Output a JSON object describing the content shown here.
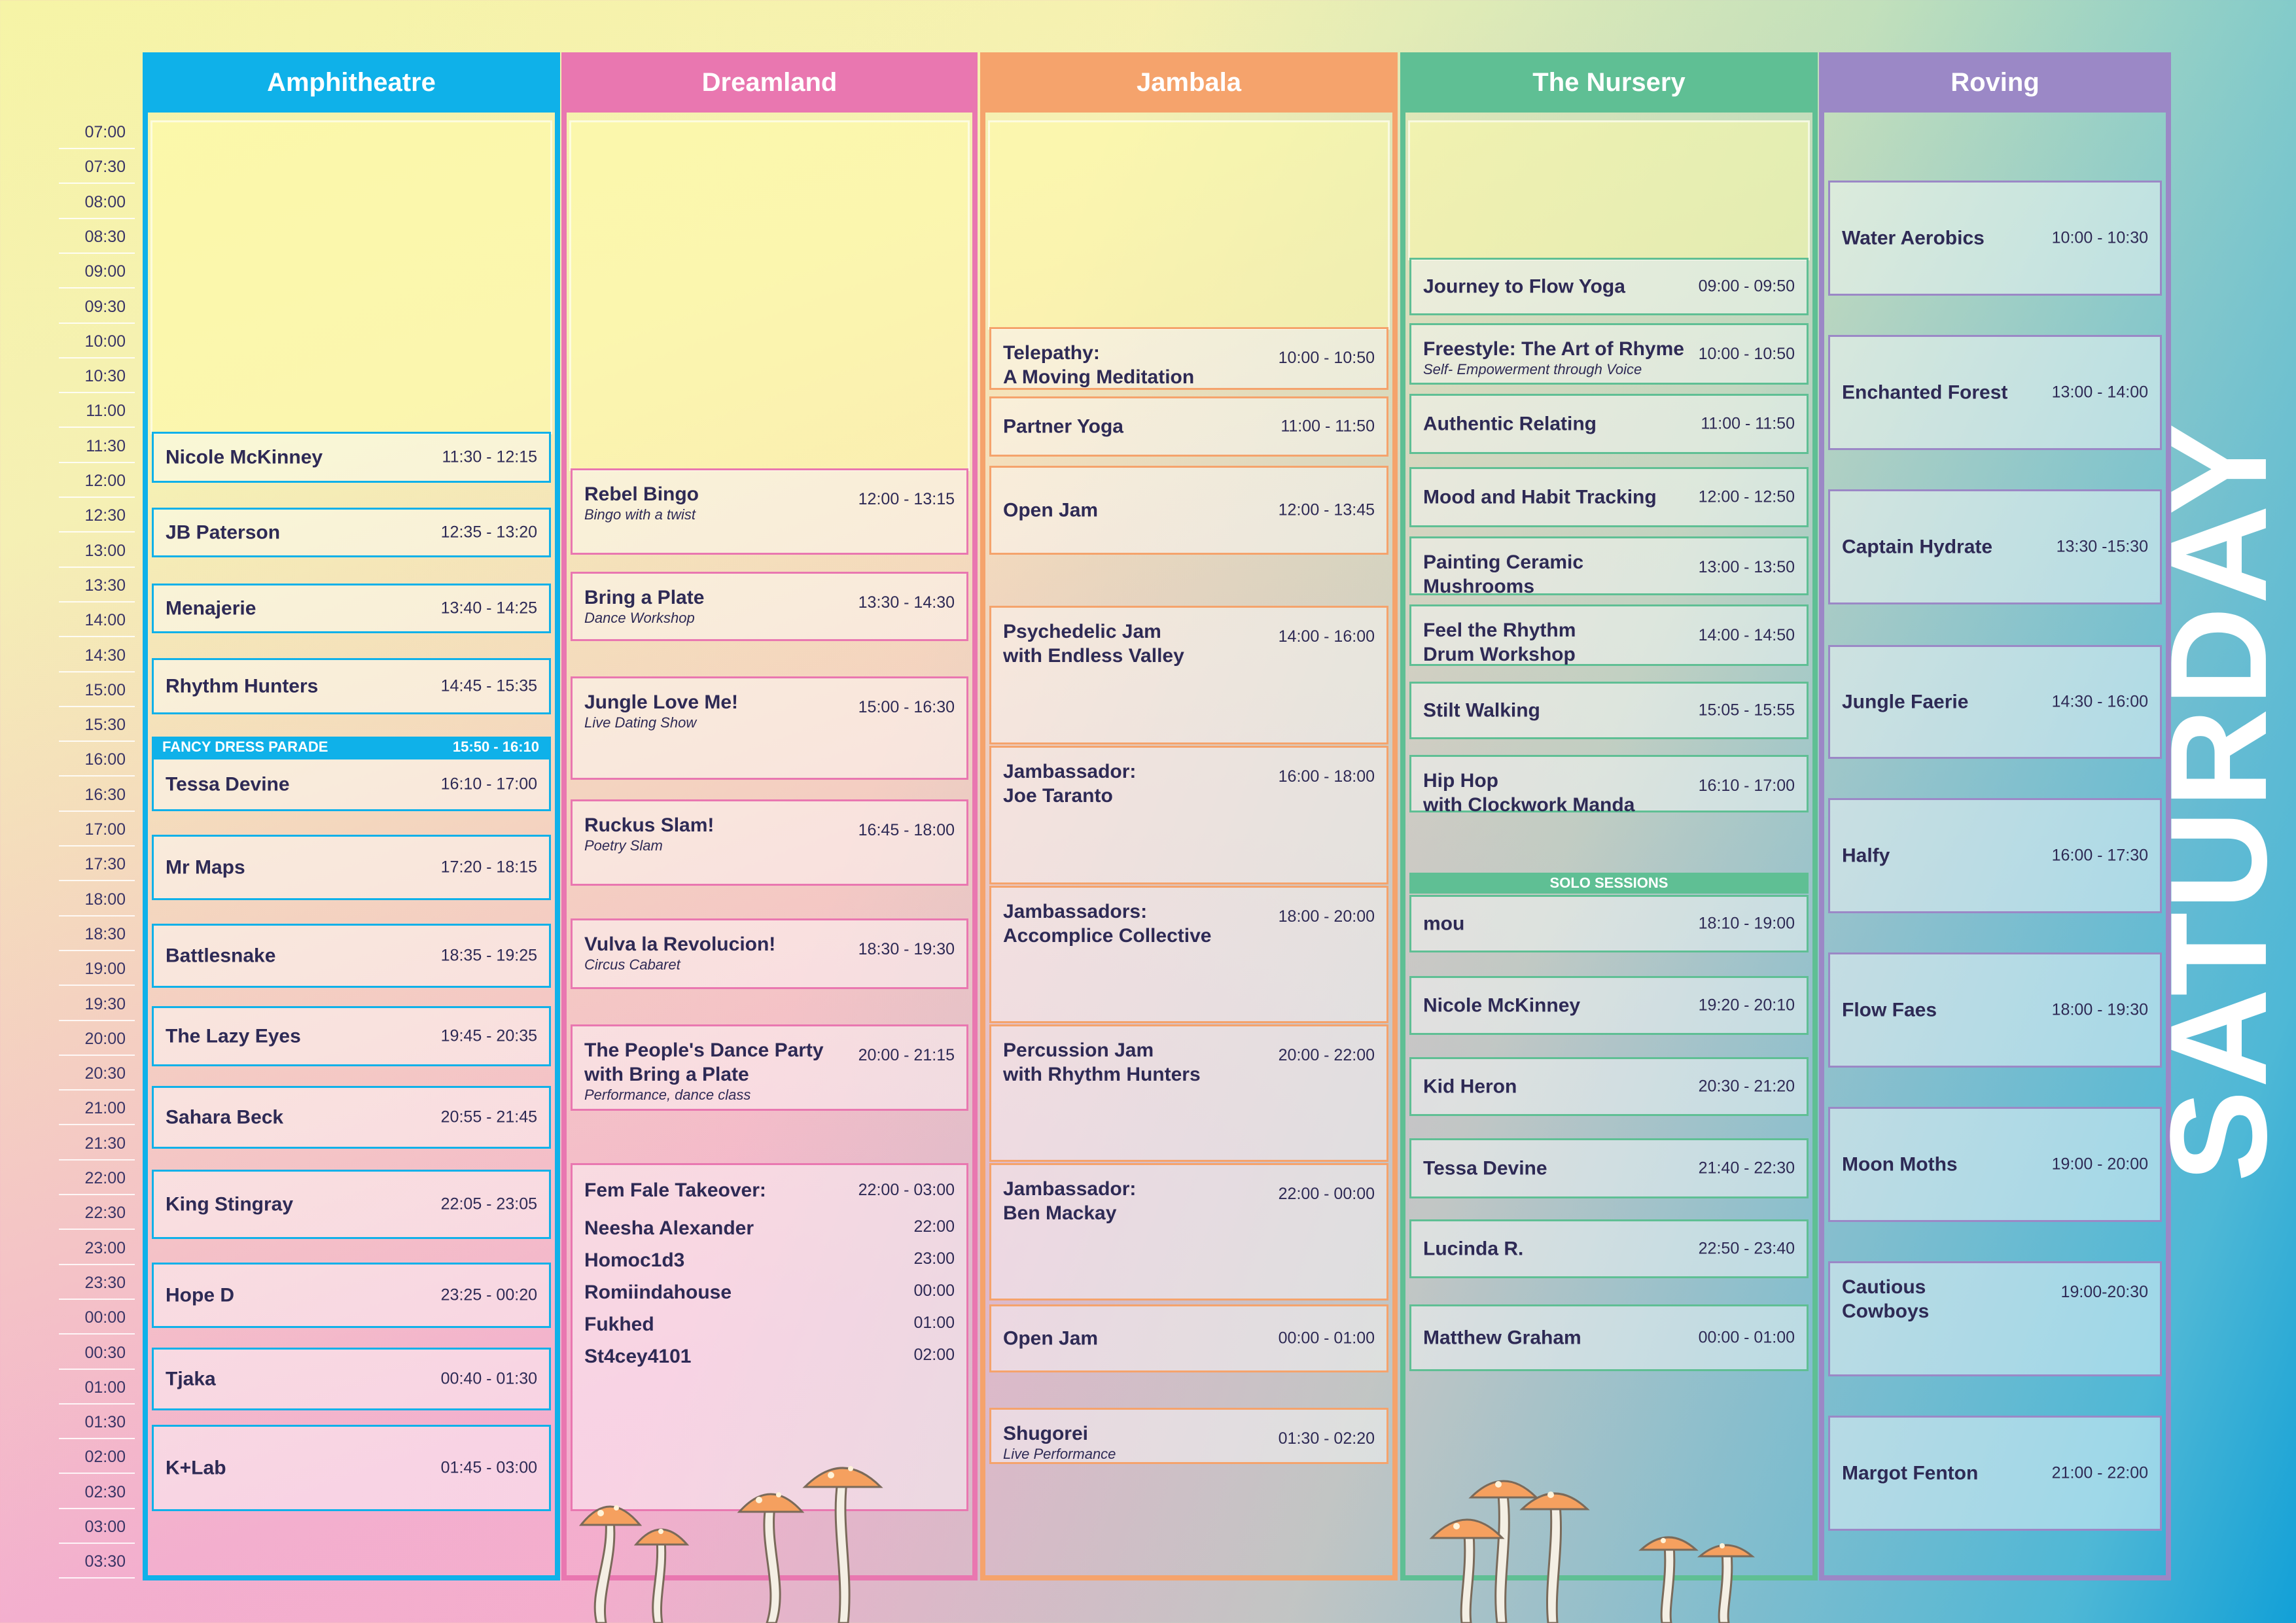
{
  "day": "SATURDAY",
  "times": [
    "07:00",
    "07:30",
    "08:00",
    "08:30",
    "09:00",
    "09:30",
    "10:00",
    "10:30",
    "11:00",
    "11:30",
    "12:00",
    "12:30",
    "13:00",
    "13:30",
    "14:00",
    "14:30",
    "15:00",
    "15:30",
    "16:00",
    "16:30",
    "17:00",
    "17:30",
    "18:00",
    "18:30",
    "19:00",
    "19:30",
    "20:00",
    "20:30",
    "21:00",
    "21:30",
    "22:00",
    "22:30",
    "23:00",
    "23:30",
    "00:00",
    "00:30",
    "01:00",
    "01:30",
    "02:00",
    "02:30",
    "03:00",
    "03:30"
  ],
  "colors": {
    "amphitheatre": "#0fb1e9",
    "dreamland": "#e977b0",
    "jambala": "#f5a36c",
    "nursery": "#5fbf94",
    "roving": "#9b88c6"
  },
  "amphitheatre": {
    "name": "Amphitheatre",
    "banner": {
      "title": "FANCY DRESS PARADE",
      "time": "15:50 - 16:10"
    },
    "slots": [
      {
        "title": "Nicole McKinney",
        "time": "11:30 - 12:15"
      },
      {
        "title": "JB Paterson",
        "time": "12:35 - 13:20"
      },
      {
        "title": "Menajerie",
        "time": "13:40 - 14:25"
      },
      {
        "title": "Rhythm Hunters",
        "time": "14:45 - 15:35"
      },
      {
        "title": "Tessa Devine",
        "time": "16:10 - 17:00"
      },
      {
        "title": "Mr Maps",
        "time": "17:20 - 18:15"
      },
      {
        "title": "Battlesnake",
        "time": "18:35 - 19:25"
      },
      {
        "title": "The Lazy Eyes",
        "time": "19:45 - 20:35"
      },
      {
        "title": "Sahara Beck",
        "time": "20:55 - 21:45"
      },
      {
        "title": "King Stingray",
        "time": "22:05 - 23:05"
      },
      {
        "title": "Hope D",
        "time": "23:25 - 00:20"
      },
      {
        "title": "Tjaka",
        "time": "00:40 - 01:30"
      },
      {
        "title": "K+Lab",
        "time": "01:45 - 03:00"
      }
    ]
  },
  "dreamland": {
    "name": "Dreamland",
    "slots": [
      {
        "title": "Rebel Bingo",
        "sub": "Bingo with a twist",
        "time": "12:00 - 13:15"
      },
      {
        "title": "Bring a Plate",
        "sub": "Dance Workshop",
        "time": "13:30 - 14:30"
      },
      {
        "title": "Jungle Love Me!",
        "sub": "Live Dating Show",
        "time": "15:00 - 16:30"
      },
      {
        "title": "Ruckus Slam!",
        "sub": "Poetry Slam",
        "time": "16:45 - 18:00"
      },
      {
        "title": "Vulva la Revolucion!",
        "sub": "Circus Cabaret",
        "time": "18:30 - 19:30"
      },
      {
        "title": "The People's Dance Party with Bring a Plate",
        "sub": "Performance, dance class",
        "time": "20:00 - 21:15"
      }
    ],
    "takeover": {
      "title": "Fem Fale Takeover:",
      "time": "22:00 - 03:00",
      "acts": [
        {
          "name": "Neesha Alexander",
          "time": "22:00"
        },
        {
          "name": "Homoc1d3",
          "time": "23:00"
        },
        {
          "name": "Romiindahouse",
          "time": "00:00"
        },
        {
          "name": "Fukhed",
          "time": "01:00"
        },
        {
          "name": "St4cey4101",
          "time": "02:00"
        }
      ]
    }
  },
  "jambala": {
    "name": "Jambala",
    "slots": [
      {
        "title": "Telepathy:",
        "sub2": "A Moving Meditation",
        "time": "10:00 - 10:50"
      },
      {
        "title": "Partner Yoga",
        "time": "11:00 - 11:50"
      },
      {
        "title": "Open Jam",
        "time": "12:00 - 13:45"
      },
      {
        "title": "Psychedelic Jam",
        "sub2": "with Endless Valley",
        "time": "14:00 - 16:00"
      },
      {
        "title": "Jambassador:",
        "sub2": "Joe Taranto",
        "time": "16:00 - 18:00"
      },
      {
        "title": "Jambassadors:",
        "sub2": "Accomplice Collective",
        "time": "18:00 - 20:00"
      },
      {
        "title": "Percussion Jam",
        "sub2": "with Rhythm Hunters",
        "time": "20:00 - 22:00"
      },
      {
        "title": "Jambassador:",
        "sub2": "Ben Mackay",
        "time": "22:00 - 00:00"
      },
      {
        "title": "Open Jam",
        "time": "00:00 - 01:00"
      },
      {
        "title": "Shugorei",
        "sub": "Live Performance",
        "time": "01:30 - 02:20"
      }
    ]
  },
  "nursery": {
    "name": "The Nursery",
    "banner": {
      "title": "SOLO SESSIONS"
    },
    "slots": [
      {
        "title": "Journey to Flow Yoga",
        "time": "09:00 - 09:50"
      },
      {
        "title": "Freestyle: The Art of Rhyme",
        "sub": "Self- Empowerment through Voice",
        "time": "10:00 - 10:50"
      },
      {
        "title": "Authentic Relating",
        "time": "11:00 - 11:50"
      },
      {
        "title": "Mood and Habit Tracking",
        "time": "12:00 - 12:50"
      },
      {
        "title": "Painting Ceramic",
        "sub2": "Mushrooms",
        "time": "13:00 - 13:50"
      },
      {
        "title": "Feel the Rhythm",
        "sub2": "Drum Workshop",
        "time": "14:00 - 14:50"
      },
      {
        "title": "Stilt Walking",
        "time": "15:05 - 15:55"
      },
      {
        "title": "Hip Hop",
        "sub2": "with Clockwork Manda",
        "time": "16:10 - 17:00"
      },
      {
        "title": "mou",
        "time": "18:10 - 19:00"
      },
      {
        "title": "Nicole McKinney",
        "time": "19:20 - 20:10"
      },
      {
        "title": "Kid Heron",
        "time": "20:30 - 21:20"
      },
      {
        "title": "Tessa Devine",
        "time": "21:40 - 22:30"
      },
      {
        "title": "Lucinda R.",
        "time": "22:50 - 23:40"
      },
      {
        "title": "Matthew Graham",
        "time": "00:00 - 01:00"
      }
    ]
  },
  "roving": {
    "name": "Roving",
    "slots": [
      {
        "title": "Water Aerobics",
        "time": "10:00 - 10:30"
      },
      {
        "title": "Enchanted Forest",
        "time": "13:00 - 14:00"
      },
      {
        "title": "Captain Hydrate",
        "time": "13:30 -15:30"
      },
      {
        "title": "Jungle Faerie",
        "time": "14:30 - 16:00"
      },
      {
        "title": "Halfy",
        "time": "16:00 - 17:30"
      },
      {
        "title": "Flow Faes",
        "time": "18:00 - 19:30"
      },
      {
        "title": "Moon Moths",
        "time": "19:00 - 20:00"
      },
      {
        "title": "Cautious",
        "sub2": "Cowboys",
        "time": "19:00-20:30"
      },
      {
        "title": "Margot Fenton",
        "time": "21:00 - 22:00"
      }
    ]
  }
}
